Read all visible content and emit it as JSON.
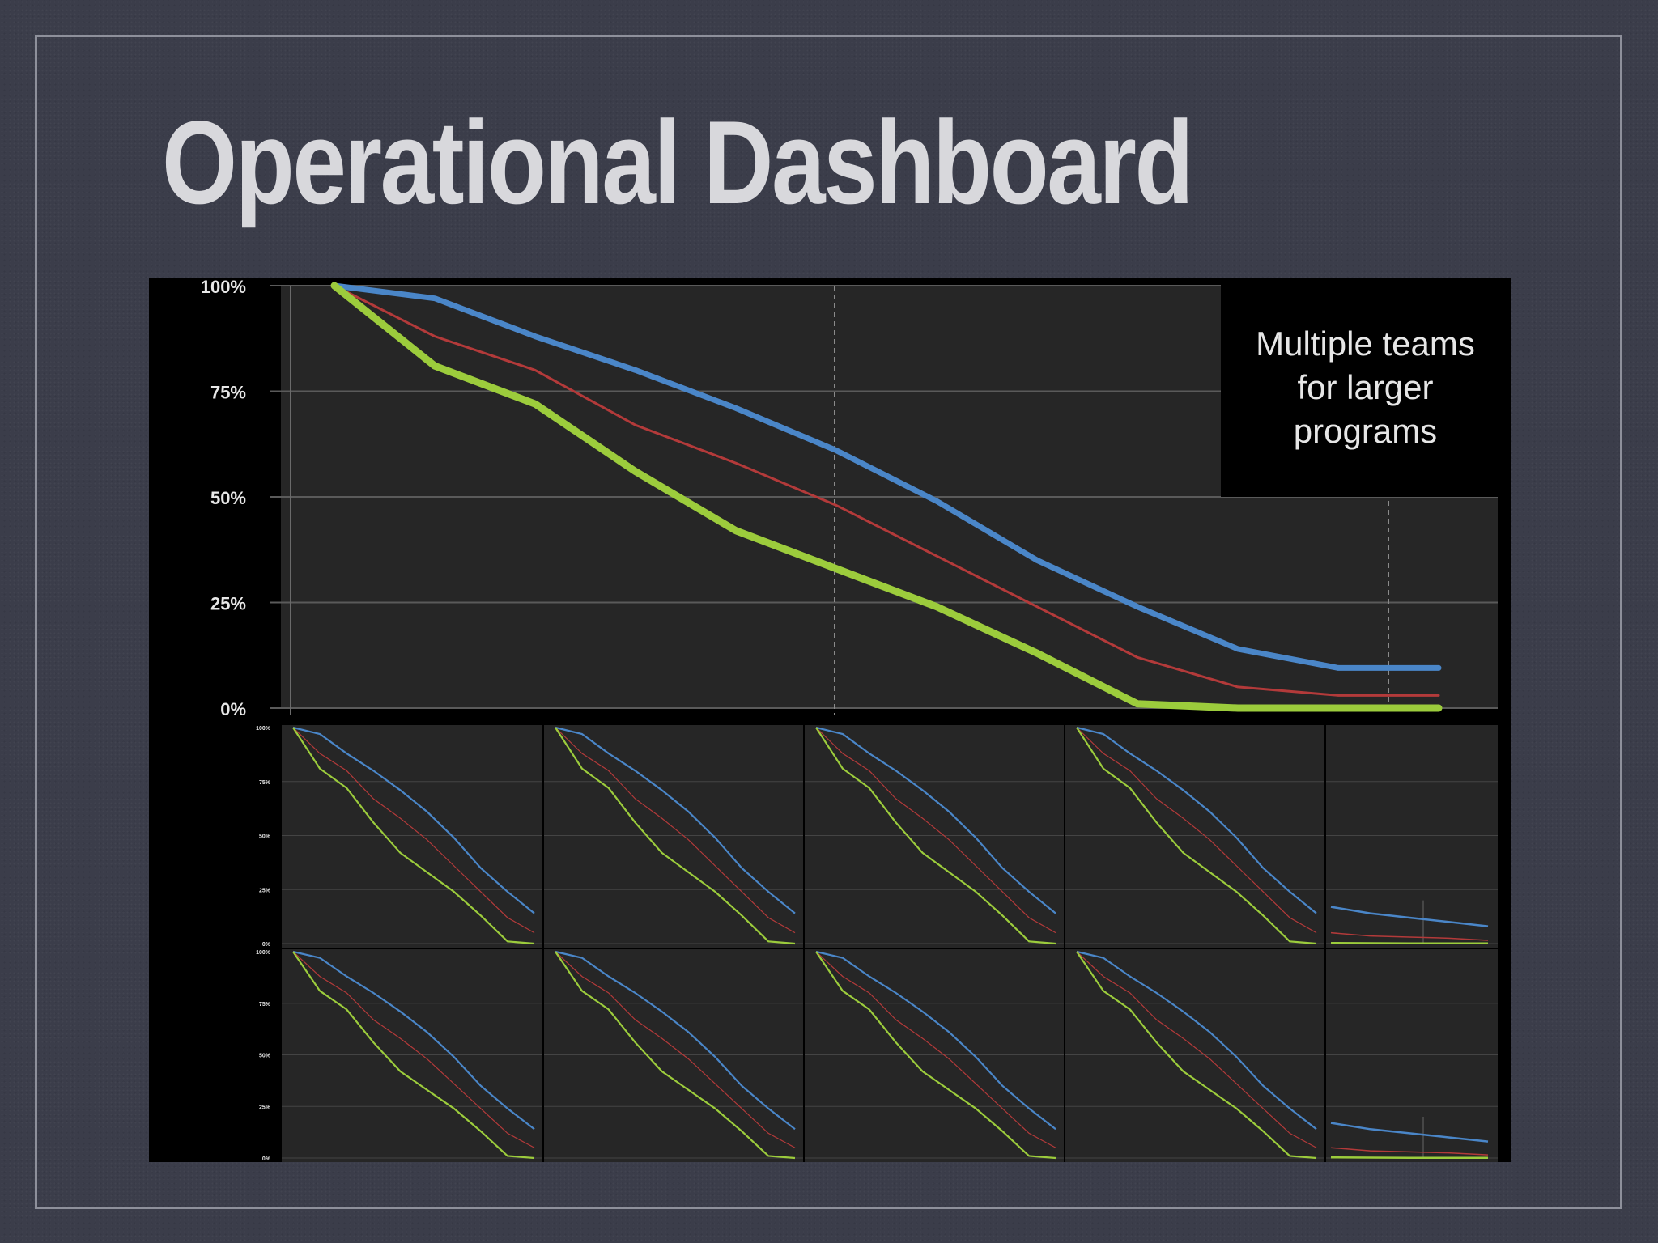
{
  "slide": {
    "title": "Operational Dashboard"
  },
  "annotation": "Multiple teams\nfor larger\nprograms",
  "colors": {
    "background": "#3b3d4a",
    "plot_bg": "#262626",
    "blue": "#4a86c8",
    "red": "#b33a3a",
    "green": "#9ccc3c"
  },
  "chart_data": [
    {
      "type": "line",
      "title": "",
      "xlabel": "",
      "ylabel": "",
      "ylim": [
        0,
        100
      ],
      "y_ticks": [
        "100%",
        "75%",
        "50%",
        "25%",
        "0%"
      ],
      "grid": true,
      "x": [
        0,
        1,
        2,
        3,
        4,
        5,
        6,
        7,
        8,
        9,
        10,
        11
      ],
      "series": [
        {
          "color": "blue",
          "values": [
            100,
            97,
            88,
            80,
            71,
            61,
            49,
            35,
            24,
            14,
            9.5,
            9.5
          ]
        },
        {
          "color": "red",
          "values": [
            100,
            88,
            80,
            67,
            58,
            48,
            36,
            24,
            12,
            5,
            3,
            3
          ]
        },
        {
          "color": "green",
          "values": [
            100,
            81,
            72,
            56,
            42,
            33,
            24,
            13,
            1,
            0,
            0,
            0
          ]
        }
      ]
    },
    {
      "type": "line",
      "description": "small-multiple team panels (2 rows x 5)",
      "ylim": [
        0,
        100
      ],
      "y_ticks": [
        "100%",
        "75%",
        "50%",
        "25%",
        "0%"
      ],
      "panels": 10,
      "series_colors": [
        "blue",
        "red",
        "green"
      ]
    }
  ]
}
